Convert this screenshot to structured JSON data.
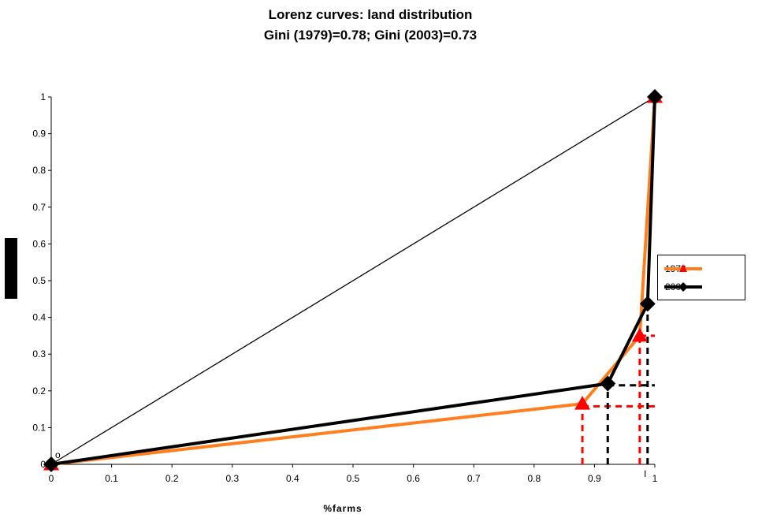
{
  "chart_data": {
    "type": "line",
    "title_lines": [
      "Lorenz curves: land distribution",
      "Gini (1979)=0.78; Gini (2003)=0.73"
    ],
    "xlabel": "%farms",
    "ylabel": "",
    "xlim": [
      0,
      1
    ],
    "ylim": [
      0,
      1
    ],
    "x_ticks": [
      "0",
      "0.1",
      "0.2",
      "0.3",
      "0.4",
      "0.5",
      "0.6",
      "0.7",
      "0.8",
      "0.9",
      "1"
    ],
    "y_ticks": [
      "0",
      "0.1",
      "0.2",
      "0.3",
      "0.4",
      "0.5",
      "0.6",
      "0.7",
      "0.8",
      "0.9",
      "1"
    ],
    "grid": false,
    "legend_position": "right",
    "series": [
      {
        "name": "1979",
        "color": "#ff7f1e",
        "marker": "triangle",
        "marker_color": "#ff0000",
        "x": [
          0,
          0.88,
          0.975,
          1
        ],
        "y": [
          0,
          0.165,
          0.35,
          1
        ]
      },
      {
        "name": "2003",
        "color": "#000000",
        "marker": "diamond",
        "marker_color": "#000000",
        "x": [
          0,
          0.922,
          0.988,
          1
        ],
        "y": [
          0,
          0.22,
          0.437,
          1
        ]
      }
    ],
    "equality_line": {
      "x": [
        0,
        1
      ],
      "y": [
        0,
        1
      ],
      "color": "#000000"
    },
    "reference_lines": [
      {
        "series": "1979",
        "color": "#ff0000",
        "points": [
          [
            0.88,
            0.158
          ],
          [
            0.975,
            0.35
          ]
        ]
      },
      {
        "series": "2003",
        "color": "#000000",
        "points": [
          [
            0.922,
            0.215
          ],
          [
            0.988,
            0.437
          ]
        ]
      }
    ],
    "annotations": [
      "o",
      "I"
    ]
  }
}
